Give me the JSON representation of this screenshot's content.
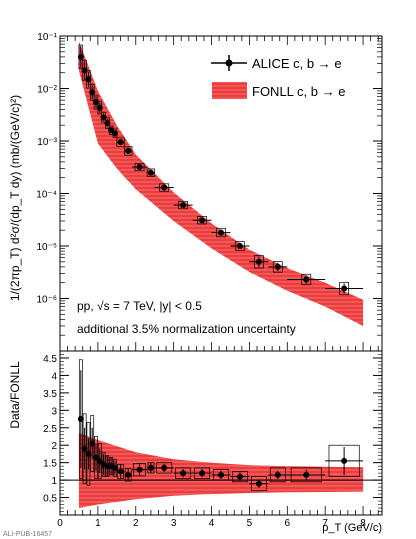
{
  "chart_data": [
    {
      "type": "scatter",
      "panel": "spectrum",
      "ylabel": "1/(2πp_T) d²σ/(dp_T dy) (mb/(GeV/c)²)",
      "yscale": "log",
      "xlim": [
        0,
        8.5
      ],
      "ylim": [
        1e-07,
        0.1
      ],
      "y_tick_labels": [
        "10⁻⁷",
        "10⁻⁶",
        "10⁻⁵",
        "10⁻⁴",
        "10⁻³",
        "10⁻²",
        "10⁻¹"
      ],
      "legend_placement": "top-right",
      "legend": {
        "data": "ALICE c, b → e",
        "band": "FONLL c, b → e"
      },
      "annotations": {
        "line1": "pp, √s = 7 TeV, |y| < 0.5",
        "line2": "additional 3.5% normalization uncertainty"
      },
      "series": [
        {
          "name": "ALICE c, b → e",
          "color": "#000000",
          "x": [
            0.55,
            0.65,
            0.75,
            0.85,
            0.95,
            1.05,
            1.15,
            1.25,
            1.35,
            1.45,
            1.6,
            1.8,
            2.1,
            2.4,
            2.75,
            3.25,
            3.75,
            4.25,
            4.75,
            5.25,
            5.75,
            6.5,
            7.5
          ],
          "x_err": [
            0.05,
            0.05,
            0.05,
            0.05,
            0.05,
            0.05,
            0.05,
            0.05,
            0.05,
            0.05,
            0.1,
            0.1,
            0.2,
            0.1,
            0.25,
            0.25,
            0.25,
            0.25,
            0.25,
            0.25,
            0.25,
            0.5,
            0.5
          ],
          "y": [
            0.04,
            0.022,
            0.015,
            0.0085,
            0.0055,
            0.0043,
            0.0028,
            0.0022,
            0.0016,
            0.0014,
            0.00095,
            0.00065,
            0.00032,
            0.00025,
            0.00013,
            6e-05,
            3.1e-05,
            1.8e-05,
            1e-05,
            5e-06,
            4e-06,
            2.3e-06,
            1.55e-06
          ],
          "y_err_rel": [
            0.6,
            0.5,
            0.4,
            0.35,
            0.3,
            0.25,
            0.2,
            0.2,
            0.15,
            0.15,
            0.15,
            0.15,
            0.12,
            0.12,
            0.12,
            0.12,
            0.12,
            0.15,
            0.15,
            0.25,
            0.2,
            0.2,
            0.25
          ]
        }
      ],
      "band": {
        "name": "FONLL c, b → e",
        "color": "#ee3b3b",
        "x": [
          0.5,
          1,
          1.5,
          2,
          3,
          4,
          5,
          6,
          7,
          8
        ],
        "low": [
          0.022,
          0.0009,
          0.0003,
          0.00012,
          3e-05,
          9e-06,
          3.2e-06,
          1.4e-06,
          7e-07,
          3e-07
        ],
        "high": [
          0.08,
          0.009,
          0.002,
          0.00055,
          0.000105,
          2.7e-05,
          8.5e-06,
          3.8e-06,
          2e-06,
          9.5e-07
        ]
      }
    },
    {
      "type": "scatter",
      "panel": "ratio",
      "xlabel": "p_T (GeV/c)",
      "ylabel": "Data/FONLL",
      "xlim": [
        0,
        8.5
      ],
      "ylim": [
        0,
        4.7
      ],
      "x_ticks": [
        0,
        1,
        2,
        3,
        4,
        5,
        6,
        7,
        8
      ],
      "y_ticks": [
        0.5,
        1,
        1.5,
        2,
        2.5,
        3,
        3.5,
        4,
        4.5
      ],
      "reference_line": 1,
      "series": [
        {
          "name": "ALICE c, b → e",
          "x": [
            0.55,
            0.65,
            0.75,
            0.85,
            0.95,
            1.05,
            1.15,
            1.25,
            1.35,
            1.45,
            1.6,
            1.8,
            2.1,
            2.4,
            2.75,
            3.25,
            3.75,
            4.25,
            4.75,
            5.25,
            5.75,
            6.5,
            7.5
          ],
          "x_err": [
            0.05,
            0.05,
            0.05,
            0.05,
            0.05,
            0.05,
            0.05,
            0.05,
            0.05,
            0.05,
            0.1,
            0.1,
            0.2,
            0.1,
            0.25,
            0.25,
            0.25,
            0.25,
            0.25,
            0.25,
            0.25,
            0.5,
            0.5
          ],
          "y": [
            2.75,
            1.9,
            1.75,
            2.05,
            1.65,
            1.55,
            1.45,
            1.4,
            1.4,
            1.35,
            1.25,
            1.15,
            1.3,
            1.35,
            1.35,
            1.2,
            1.2,
            1.15,
            1.1,
            0.9,
            1.15,
            1.15,
            1.55
          ],
          "y_err_stat": [
            1.4,
            0.6,
            0.45,
            0.45,
            0.4,
            0.35,
            0.3,
            0.3,
            0.25,
            0.2,
            0.2,
            0.18,
            0.18,
            0.15,
            0.12,
            0.12,
            0.12,
            0.12,
            0.12,
            0.12,
            0.12,
            0.15,
            0.4
          ],
          "y_err_sys": [
            1.7,
            1.0,
            0.9,
            0.8,
            0.6,
            0.5,
            0.35,
            0.3,
            0.25,
            0.25,
            0.2,
            0.18,
            0.18,
            0.15,
            0.15,
            0.15,
            0.15,
            0.15,
            0.15,
            0.2,
            0.2,
            0.2,
            0.45
          ]
        }
      ],
      "band": {
        "x": [
          0.5,
          1,
          2,
          3,
          4,
          5,
          6,
          7,
          8
        ],
        "low": [
          0.2,
          0.3,
          0.45,
          0.55,
          0.6,
          0.63,
          0.65,
          0.66,
          0.67
        ],
        "high": [
          2.35,
          2.15,
          1.8,
          1.6,
          1.5,
          1.43,
          1.4,
          1.38,
          1.37
        ],
        "color": "#ee3b3b"
      }
    }
  ],
  "footer": {
    "source_id": "ALI-PUB-16457"
  }
}
